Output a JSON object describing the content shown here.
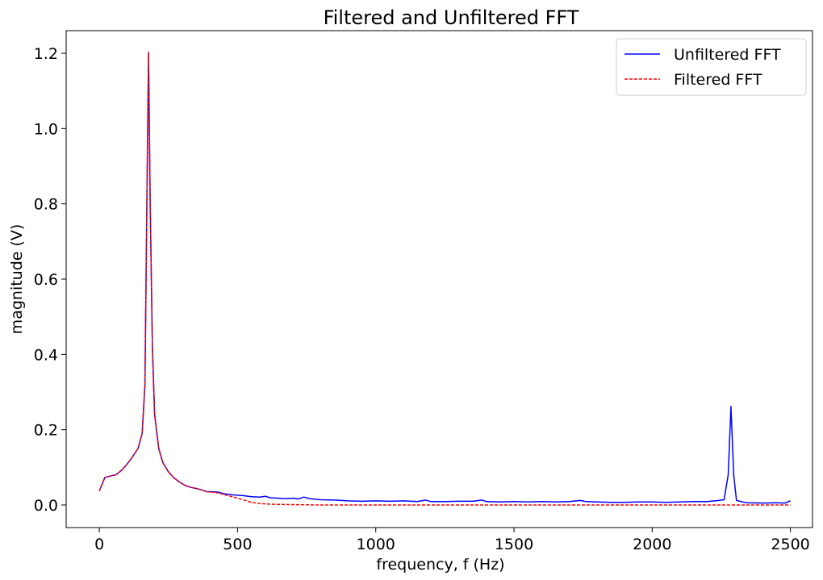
{
  "chart_data": {
    "type": "line",
    "title": "Filtered and Unfiltered FFT",
    "xlabel": "frequency, f (Hz)",
    "ylabel": "magnitude (V)",
    "xlim": [
      -120,
      2580
    ],
    "ylim": [
      -0.06,
      1.26
    ],
    "xticks": [
      0,
      500,
      1000,
      1500,
      2000,
      2500
    ],
    "xtick_labels": [
      "0",
      "500",
      "1000",
      "1500",
      "2000",
      "2500"
    ],
    "yticks": [
      0.0,
      0.2,
      0.4,
      0.6,
      0.8,
      1.0,
      1.2
    ],
    "ytick_labels": [
      "0.0",
      "0.2",
      "0.4",
      "0.6",
      "0.8",
      "1.0",
      "1.2"
    ],
    "grid": false,
    "legend_position": "upper-right",
    "series": [
      {
        "name": "Unfiltered FFT",
        "color": "#0000ff",
        "style": "solid",
        "points": [
          [
            0,
            0.037
          ],
          [
            20,
            0.073
          ],
          [
            40,
            0.077
          ],
          [
            60,
            0.08
          ],
          [
            80,
            0.092
          ],
          [
            100,
            0.108
          ],
          [
            120,
            0.128
          ],
          [
            140,
            0.15
          ],
          [
            155,
            0.19
          ],
          [
            165,
            0.32
          ],
          [
            172,
            0.8
          ],
          [
            178,
            1.2
          ],
          [
            184,
            0.8
          ],
          [
            192,
            0.42
          ],
          [
            200,
            0.24
          ],
          [
            215,
            0.15
          ],
          [
            230,
            0.112
          ],
          [
            250,
            0.088
          ],
          [
            270,
            0.072
          ],
          [
            290,
            0.061
          ],
          [
            310,
            0.052
          ],
          [
            330,
            0.047
          ],
          [
            350,
            0.044
          ],
          [
            370,
            0.04
          ],
          [
            390,
            0.035
          ],
          [
            410,
            0.035
          ],
          [
            430,
            0.034
          ],
          [
            450,
            0.03
          ],
          [
            480,
            0.027
          ],
          [
            520,
            0.025
          ],
          [
            550,
            0.022
          ],
          [
            580,
            0.021
          ],
          [
            600,
            0.023
          ],
          [
            620,
            0.019
          ],
          [
            650,
            0.018
          ],
          [
            680,
            0.017
          ],
          [
            700,
            0.018
          ],
          [
            720,
            0.016
          ],
          [
            740,
            0.021
          ],
          [
            760,
            0.017
          ],
          [
            800,
            0.014
          ],
          [
            850,
            0.013
          ],
          [
            900,
            0.011
          ],
          [
            950,
            0.01
          ],
          [
            1000,
            0.011
          ],
          [
            1050,
            0.01
          ],
          [
            1100,
            0.011
          ],
          [
            1150,
            0.009
          ],
          [
            1180,
            0.013
          ],
          [
            1200,
            0.009
          ],
          [
            1250,
            0.009
          ],
          [
            1300,
            0.01
          ],
          [
            1350,
            0.01
          ],
          [
            1385,
            0.013
          ],
          [
            1400,
            0.009
          ],
          [
            1450,
            0.008
          ],
          [
            1500,
            0.009
          ],
          [
            1550,
            0.008
          ],
          [
            1600,
            0.009
          ],
          [
            1650,
            0.008
          ],
          [
            1700,
            0.009
          ],
          [
            1740,
            0.012
          ],
          [
            1760,
            0.009
          ],
          [
            1800,
            0.008
          ],
          [
            1850,
            0.007
          ],
          [
            1900,
            0.007
          ],
          [
            1950,
            0.008
          ],
          [
            2000,
            0.008
          ],
          [
            2050,
            0.007
          ],
          [
            2100,
            0.008
          ],
          [
            2150,
            0.009
          ],
          [
            2200,
            0.009
          ],
          [
            2240,
            0.012
          ],
          [
            2260,
            0.014
          ],
          [
            2275,
            0.08
          ],
          [
            2285,
            0.262
          ],
          [
            2295,
            0.08
          ],
          [
            2305,
            0.012
          ],
          [
            2340,
            0.006
          ],
          [
            2400,
            0.005
          ],
          [
            2450,
            0.006
          ],
          [
            2480,
            0.005
          ],
          [
            2500,
            0.011
          ]
        ]
      },
      {
        "name": "Filtered FFT",
        "color": "#ff0000",
        "style": "dashed",
        "points": [
          [
            0,
            0.037
          ],
          [
            20,
            0.073
          ],
          [
            40,
            0.077
          ],
          [
            60,
            0.08
          ],
          [
            80,
            0.092
          ],
          [
            100,
            0.108
          ],
          [
            120,
            0.128
          ],
          [
            140,
            0.15
          ],
          [
            155,
            0.19
          ],
          [
            165,
            0.32
          ],
          [
            172,
            0.8
          ],
          [
            178,
            1.205
          ],
          [
            184,
            0.8
          ],
          [
            192,
            0.42
          ],
          [
            200,
            0.24
          ],
          [
            215,
            0.15
          ],
          [
            230,
            0.112
          ],
          [
            250,
            0.088
          ],
          [
            270,
            0.072
          ],
          [
            290,
            0.061
          ],
          [
            310,
            0.052
          ],
          [
            330,
            0.047
          ],
          [
            350,
            0.044
          ],
          [
            370,
            0.04
          ],
          [
            390,
            0.035
          ],
          [
            410,
            0.034
          ],
          [
            430,
            0.032
          ],
          [
            450,
            0.028
          ],
          [
            480,
            0.022
          ],
          [
            520,
            0.014
          ],
          [
            550,
            0.007
          ],
          [
            580,
            0.004
          ],
          [
            620,
            0.002
          ],
          [
            700,
            0.001
          ],
          [
            800,
            0.0
          ],
          [
            1000,
            0.0
          ],
          [
            1500,
            0.0
          ],
          [
            2000,
            0.0
          ],
          [
            2500,
            0.0
          ]
        ]
      }
    ]
  }
}
